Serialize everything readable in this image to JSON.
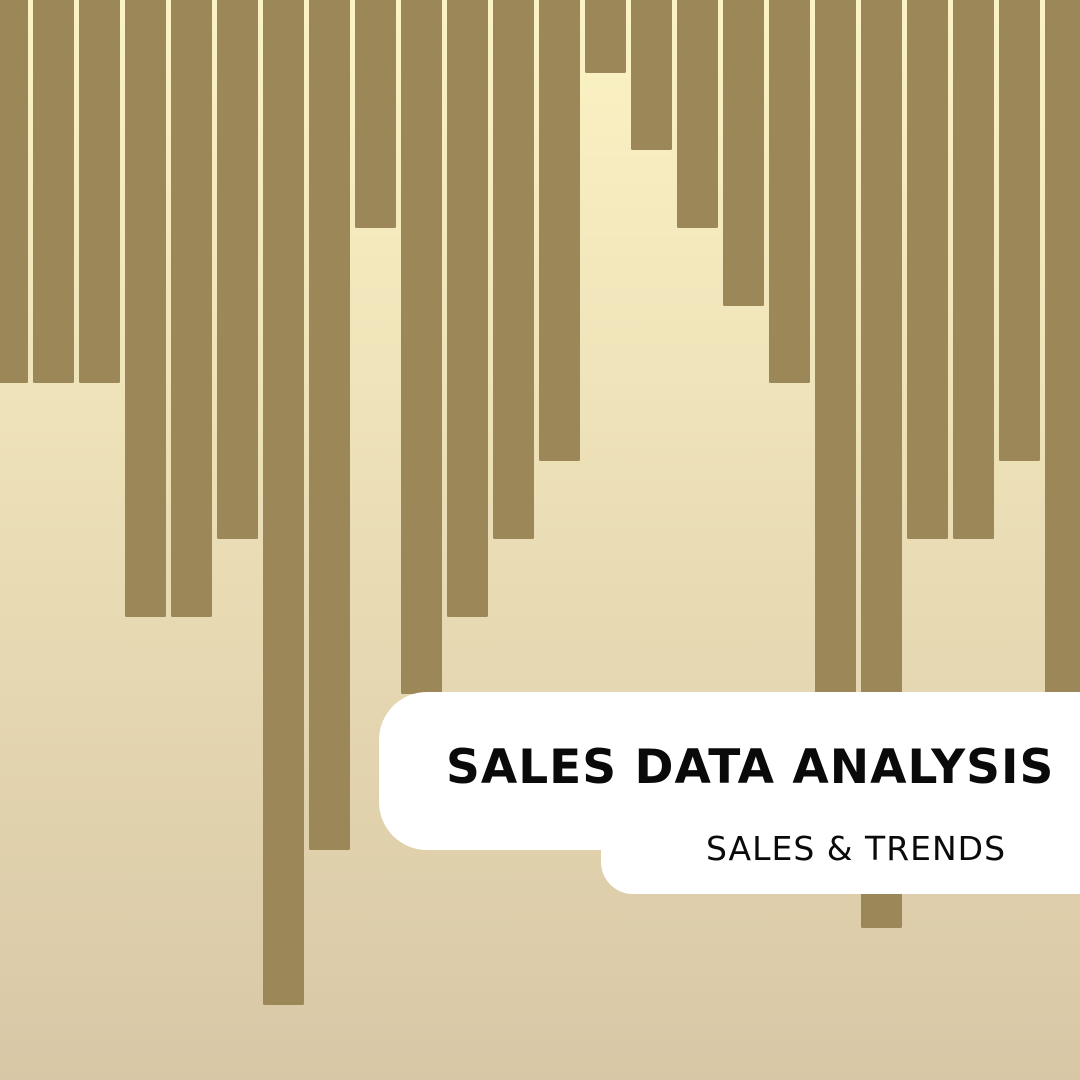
{
  "header": {
    "title": "SALES DATA ANALYSIS",
    "subtitle": "SALES & TRENDS"
  },
  "colors": {
    "bar": "#9c8758",
    "background_top": "#fcf3c4",
    "background_bottom": "#d8c7a6",
    "card": "#ffffff",
    "text": "#0a0a0a"
  },
  "chart_data": {
    "type": "bar",
    "orientation": "vertical-hanging",
    "values": [
      383,
      383,
      383,
      617,
      617,
      539,
      1005,
      850,
      228,
      694,
      617,
      539,
      461,
      73,
      150,
      228,
      306,
      383,
      694,
      928,
      539,
      539,
      461,
      694
    ]
  }
}
